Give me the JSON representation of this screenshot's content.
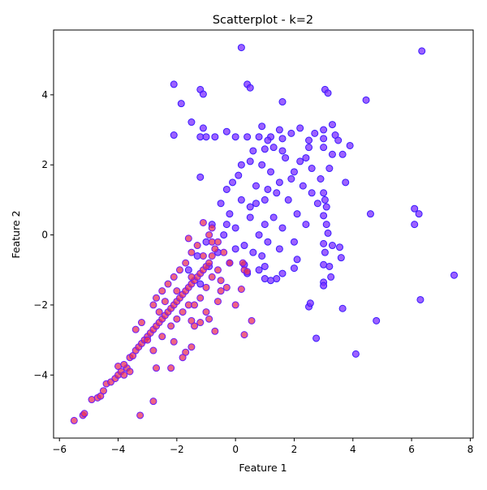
{
  "chart_data": {
    "type": "scatter",
    "title": "Scatterplot - k=2",
    "xlabel": "Feature 1",
    "ylabel": "Feature 2",
    "xlim": [
      -6.2,
      8.1
    ],
    "ylim": [
      -5.8,
      5.85
    ],
    "xticks": [
      -6,
      -4,
      -2,
      0,
      2,
      4,
      6,
      8
    ],
    "yticks": [
      -4,
      -2,
      0,
      2,
      4
    ],
    "grid": false,
    "legend": "none",
    "colors": {
      "cluster_0_fill": "#7b2cff",
      "cluster_0_edge": "#3a1aff",
      "cluster_1_fill": "#e8305a",
      "cluster_1_edge": "#6a1aff"
    },
    "series": [
      {
        "cluster": 0,
        "points": [
          [
            0.2,
            5.35
          ],
          [
            6.35,
            5.25
          ],
          [
            -2.1,
            4.3
          ],
          [
            0.4,
            4.3
          ],
          [
            0.5,
            4.2
          ],
          [
            -1.2,
            4.15
          ],
          [
            -1.1,
            4.02
          ],
          [
            3.05,
            4.15
          ],
          [
            3.15,
            4.05
          ],
          [
            4.45,
            3.85
          ],
          [
            -1.85,
            3.75
          ],
          [
            1.6,
            3.8
          ],
          [
            -1.5,
            3.22
          ],
          [
            -1.1,
            3.05
          ],
          [
            -2.1,
            2.85
          ],
          [
            -0.3,
            2.95
          ],
          [
            0.9,
            3.1
          ],
          [
            1.5,
            3.0
          ],
          [
            2.2,
            3.05
          ],
          [
            3.0,
            3.0
          ],
          [
            3.3,
            3.15
          ],
          [
            3.4,
            2.85
          ],
          [
            -1.2,
            2.8
          ],
          [
            -1.0,
            2.8
          ],
          [
            -0.7,
            2.8
          ],
          [
            0.0,
            2.8
          ],
          [
            0.4,
            2.8
          ],
          [
            0.8,
            2.8
          ],
          [
            1.2,
            2.8
          ],
          [
            1.6,
            2.75
          ],
          [
            2.5,
            2.7
          ],
          [
            3.0,
            2.75
          ],
          [
            3.9,
            2.55
          ],
          [
            3.65,
            2.3
          ],
          [
            3.0,
            2.5
          ],
          [
            -1.2,
            1.65
          ],
          [
            3.75,
            1.5
          ],
          [
            3.0,
            1.2
          ],
          [
            3.05,
            1.0
          ],
          [
            3.1,
            0.8
          ],
          [
            3.0,
            0.55
          ],
          [
            3.1,
            0.3
          ],
          [
            3.15,
            0.05
          ],
          [
            4.6,
            0.6
          ],
          [
            6.1,
            0.75
          ],
          [
            6.25,
            0.6
          ],
          [
            6.1,
            0.3
          ],
          [
            3.0,
            -0.25
          ],
          [
            3.05,
            -0.5
          ],
          [
            3.0,
            -0.85
          ],
          [
            3.2,
            -0.9
          ],
          [
            3.0,
            -1.35
          ],
          [
            3.0,
            -1.45
          ],
          [
            3.25,
            -1.2
          ],
          [
            3.55,
            -0.35
          ],
          [
            3.6,
            -0.65
          ],
          [
            3.3,
            -0.3
          ],
          [
            2.1,
            -0.7
          ],
          [
            2.0,
            -0.95
          ],
          [
            1.6,
            -1.1
          ],
          [
            1.4,
            -1.25
          ],
          [
            1.2,
            -1.3
          ],
          [
            1.0,
            -1.25
          ],
          [
            0.8,
            -1.0
          ],
          [
            0.4,
            -1.1
          ],
          [
            0.3,
            -0.85
          ],
          [
            2.5,
            -2.05
          ],
          [
            2.55,
            -1.95
          ],
          [
            2.75,
            -2.95
          ],
          [
            3.65,
            -2.1
          ],
          [
            4.8,
            -2.45
          ],
          [
            4.1,
            -3.4
          ],
          [
            6.3,
            -1.85
          ],
          [
            7.45,
            -1.15
          ],
          [
            -0.5,
            0.9
          ],
          [
            -0.3,
            1.3
          ],
          [
            0.1,
            1.7
          ],
          [
            0.5,
            2.1
          ],
          [
            1.0,
            2.45
          ],
          [
            1.6,
            2.4
          ],
          [
            2.2,
            2.1
          ],
          [
            2.6,
            1.9
          ],
          [
            0.0,
            0.2
          ],
          [
            0.5,
            0.5
          ],
          [
            1.0,
            1.0
          ],
          [
            1.5,
            1.5
          ],
          [
            2.0,
            1.8
          ],
          [
            0.3,
            -0.3
          ],
          [
            0.8,
            0.0
          ],
          [
            1.3,
            0.5
          ],
          [
            1.8,
            1.0
          ],
          [
            2.3,
            1.4
          ],
          [
            -0.2,
            0.6
          ],
          [
            0.2,
            1.0
          ],
          [
            0.7,
            1.4
          ],
          [
            1.2,
            1.8
          ],
          [
            1.7,
            2.2
          ],
          [
            2.5,
            2.5
          ],
          [
            -0.8,
            0.3
          ],
          [
            -0.4,
            0.0
          ],
          [
            0.0,
            -0.4
          ],
          [
            0.6,
            -0.5
          ],
          [
            1.1,
            -0.2
          ],
          [
            1.6,
            0.2
          ],
          [
            2.1,
            0.6
          ],
          [
            2.6,
            1.2
          ],
          [
            -1.0,
            -0.2
          ],
          [
            -0.6,
            -0.5
          ],
          [
            -0.2,
            -0.8
          ],
          [
            0.5,
            0.8
          ],
          [
            1.0,
            0.3
          ],
          [
            1.4,
            1.2
          ],
          [
            1.9,
            1.6
          ],
          [
            2.4,
            2.2
          ],
          [
            0.9,
            2.0
          ],
          [
            1.3,
            2.5
          ],
          [
            -0.3,
            0.3
          ],
          [
            0.7,
            0.9
          ],
          [
            1.1,
            1.3
          ],
          [
            2.9,
            1.6
          ],
          [
            3.2,
            1.9
          ],
          [
            -1.3,
            -0.6
          ],
          [
            -0.9,
            -0.9
          ],
          [
            -1.6,
            -1.0
          ],
          [
            -1.2,
            -1.4
          ],
          [
            0.9,
            -0.6
          ],
          [
            1.5,
            -0.4
          ],
          [
            2.0,
            -0.2
          ],
          [
            2.4,
            0.3
          ],
          [
            2.8,
            0.9
          ],
          [
            3.3,
            2.3
          ],
          [
            3.5,
            2.7
          ],
          [
            2.7,
            2.9
          ],
          [
            1.9,
            2.9
          ],
          [
            1.1,
            2.7
          ],
          [
            0.6,
            2.4
          ],
          [
            0.2,
            2.0
          ],
          [
            -0.1,
            1.5
          ],
          [
            1.0,
            -0.9
          ]
        ]
      },
      {
        "cluster": 1,
        "points": [
          [
            -5.5,
            -5.3
          ],
          [
            -5.2,
            -5.15
          ],
          [
            -5.15,
            -5.1
          ],
          [
            -3.25,
            -5.15
          ],
          [
            -2.8,
            -4.75
          ],
          [
            -4.9,
            -4.7
          ],
          [
            -4.7,
            -4.65
          ],
          [
            -4.6,
            -4.6
          ],
          [
            -4.5,
            -4.45
          ],
          [
            -4.4,
            -4.25
          ],
          [
            -4.25,
            -4.2
          ],
          [
            -4.1,
            -4.1
          ],
          [
            -4.0,
            -4.0
          ],
          [
            -3.9,
            -3.9
          ],
          [
            -3.7,
            -3.8
          ],
          [
            -4.0,
            -3.75
          ],
          [
            -3.8,
            -3.7
          ],
          [
            -3.6,
            -3.5
          ],
          [
            -3.5,
            -3.45
          ],
          [
            -3.4,
            -3.3
          ],
          [
            -3.3,
            -3.2
          ],
          [
            -3.2,
            -3.1
          ],
          [
            -3.1,
            -3.0
          ],
          [
            -3.0,
            -2.9
          ],
          [
            -2.9,
            -2.8
          ],
          [
            -2.8,
            -2.7
          ],
          [
            -2.7,
            -2.6
          ],
          [
            -2.6,
            -2.5
          ],
          [
            -2.5,
            -2.4
          ],
          [
            -2.4,
            -2.3
          ],
          [
            -2.3,
            -2.2
          ],
          [
            -2.2,
            -2.1
          ],
          [
            -2.1,
            -2.0
          ],
          [
            -2.0,
            -1.9
          ],
          [
            -1.9,
            -1.8
          ],
          [
            -1.8,
            -1.7
          ],
          [
            -1.7,
            -1.6
          ],
          [
            -1.6,
            -1.5
          ],
          [
            -1.5,
            -1.4
          ],
          [
            -1.4,
            -1.3
          ],
          [
            -1.3,
            -1.2
          ],
          [
            -1.2,
            -1.1
          ],
          [
            -1.1,
            -1.0
          ],
          [
            -1.0,
            -0.9
          ],
          [
            -0.9,
            -0.8
          ],
          [
            -0.8,
            -0.6
          ],
          [
            -0.7,
            -0.4
          ],
          [
            -0.8,
            -0.2
          ],
          [
            -0.9,
            0.0
          ],
          [
            -0.8,
            0.2
          ],
          [
            -1.1,
            0.35
          ],
          [
            -0.6,
            -1.0
          ],
          [
            -0.5,
            -1.3
          ],
          [
            -0.5,
            -1.6
          ],
          [
            -0.6,
            -1.9
          ],
          [
            -1.0,
            -2.2
          ],
          [
            -1.2,
            -2.5
          ],
          [
            -0.9,
            -2.4
          ],
          [
            -0.7,
            -2.75
          ],
          [
            -1.4,
            -2.6
          ],
          [
            -1.5,
            -2.45
          ],
          [
            -1.6,
            -2.0
          ],
          [
            -1.5,
            -3.2
          ],
          [
            -1.7,
            -3.35
          ],
          [
            -1.8,
            -3.5
          ],
          [
            -2.1,
            -3.05
          ],
          [
            -2.2,
            -3.8
          ],
          [
            -2.7,
            -3.8
          ],
          [
            -3.0,
            -3.0
          ],
          [
            -3.4,
            -2.7
          ],
          [
            -3.2,
            -2.5
          ],
          [
            -2.8,
            -2.0
          ],
          [
            -2.7,
            -1.8
          ],
          [
            -2.5,
            -1.6
          ],
          [
            -2.3,
            -1.4
          ],
          [
            -2.1,
            -1.2
          ],
          [
            -1.9,
            -1.0
          ],
          [
            -1.7,
            -0.8
          ],
          [
            -1.5,
            -0.5
          ],
          [
            -1.3,
            -0.3
          ],
          [
            -1.6,
            -0.1
          ],
          [
            -2.0,
            -1.6
          ],
          [
            -1.8,
            -2.2
          ],
          [
            -2.2,
            -2.6
          ],
          [
            -2.5,
            -2.9
          ],
          [
            -2.8,
            -3.3
          ],
          [
            -3.6,
            -3.9
          ],
          [
            -3.8,
            -4.0
          ],
          [
            0.0,
            -2.0
          ],
          [
            0.3,
            -2.85
          ],
          [
            0.55,
            -2.45
          ],
          [
            0.2,
            -1.55
          ],
          [
            0.3,
            -1.0
          ],
          [
            0.4,
            -1.05
          ],
          [
            0.25,
            -0.8
          ],
          [
            -0.3,
            -1.5
          ],
          [
            -0.2,
            -0.8
          ],
          [
            -0.4,
            -0.5
          ],
          [
            -1.2,
            -1.8
          ],
          [
            -1.4,
            -2.0
          ],
          [
            -1.0,
            -1.5
          ],
          [
            -0.8,
            -1.2
          ],
          [
            -2.4,
            -1.9
          ],
          [
            -2.6,
            -2.2
          ],
          [
            -2.0,
            -2.4
          ],
          [
            -1.1,
            -0.6
          ],
          [
            -0.6,
            -0.2
          ],
          [
            -1.5,
            -1.2
          ]
        ]
      }
    ]
  }
}
